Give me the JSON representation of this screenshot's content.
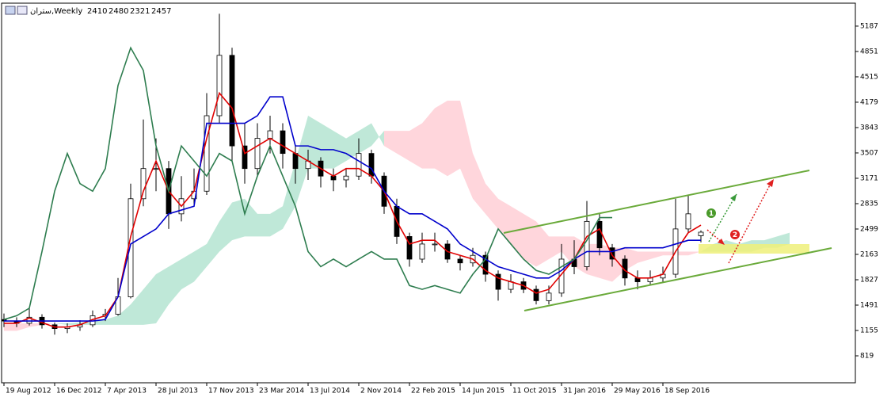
{
  "chart_data": {
    "type": "candlestick",
    "title": "ستران,Weekly",
    "x": [
      0,
      4,
      8,
      12,
      16,
      20,
      24,
      28,
      32,
      36,
      40,
      44,
      48,
      52,
      56,
      60,
      64,
      68,
      72,
      76,
      80,
      84,
      88,
      92,
      96,
      100,
      104,
      108,
      112,
      116,
      120,
      124,
      128,
      132,
      136,
      140,
      144,
      148,
      152,
      156,
      160,
      164,
      168,
      172,
      176,
      180,
      184,
      188,
      192,
      196,
      200,
      204,
      208,
      212,
      216,
      220,
      224,
      228,
      232,
      236,
      240,
      244,
      248
    ],
    "xlim": [
      -0.75,
      268.75
    ],
    "xticks": [
      {
        "value": 0,
        "label": "19 Aug 2012"
      },
      {
        "value": 16,
        "label": "16 Dec 2012"
      },
      {
        "value": 32,
        "label": "7 Apr 2013"
      },
      {
        "value": 48,
        "label": "28 Jul 2013"
      },
      {
        "value": 64,
        "label": "17 Nov 2013"
      },
      {
        "value": 80,
        "label": "23 Mar 2014"
      },
      {
        "value": 96,
        "label": "13 Jul 2014"
      },
      {
        "value": 112,
        "label": "2 Nov 2014"
      },
      {
        "value": 128,
        "label": "22 Feb 2015"
      },
      {
        "value": 144,
        "label": "14 Jun 2015"
      },
      {
        "value": 160,
        "label": "11 Oct 2015"
      },
      {
        "value": 176,
        "label": "31 Jan 2016"
      },
      {
        "value": 192,
        "label": "29 May 2016"
      },
      {
        "value": 208,
        "label": "18 Sep 2016"
      }
    ],
    "ylim": [
      462,
      5491
    ],
    "yticks": [
      5187,
      4851,
      4515,
      4179,
      3843,
      3507,
      3171,
      2835,
      2499,
      2163,
      1827,
      1491,
      1155,
      819
    ],
    "ohlc": [
      [
        1300,
        1380,
        1200,
        1280
      ],
      [
        1280,
        1330,
        1200,
        1250
      ],
      [
        1250,
        1460,
        1220,
        1330
      ],
      [
        1330,
        1370,
        1180,
        1230
      ],
      [
        1230,
        1260,
        1100,
        1180
      ],
      [
        1180,
        1250,
        1120,
        1200
      ],
      [
        1200,
        1290,
        1150,
        1230
      ],
      [
        1230,
        1420,
        1200,
        1350
      ],
      [
        1350,
        1440,
        1280,
        1370
      ],
      [
        1370,
        1850,
        1350,
        1600
      ],
      [
        1600,
        3100,
        1580,
        2900
      ],
      [
        2900,
        3950,
        2800,
        3300
      ],
      [
        3300,
        3700,
        3000,
        3300
      ],
      [
        3300,
        3400,
        2500,
        2700
      ],
      [
        2700,
        3200,
        2600,
        2900
      ],
      [
        2900,
        3300,
        2800,
        3000
      ],
      [
        3000,
        4300,
        2950,
        4000
      ],
      [
        4000,
        5350,
        3900,
        4800
      ],
      [
        4800,
        4900,
        3400,
        3600
      ],
      [
        3600,
        3900,
        3100,
        3300
      ],
      [
        3300,
        3900,
        3200,
        3700
      ],
      [
        3700,
        4000,
        3500,
        3800
      ],
      [
        3800,
        3900,
        3300,
        3500
      ],
      [
        3500,
        3600,
        3100,
        3300
      ],
      [
        3300,
        3550,
        3150,
        3400
      ],
      [
        3400,
        3450,
        3050,
        3200
      ],
      [
        3200,
        3300,
        3000,
        3150
      ],
      [
        3150,
        3300,
        3050,
        3200
      ],
      [
        3200,
        3700,
        3150,
        3500
      ],
      [
        3500,
        3550,
        3100,
        3200
      ],
      [
        3200,
        3250,
        2700,
        2800
      ],
      [
        2800,
        2900,
        2300,
        2400
      ],
      [
        2400,
        2450,
        2000,
        2100
      ],
      [
        2100,
        2450,
        2050,
        2300
      ],
      [
        2300,
        2450,
        2200,
        2300
      ],
      [
        2300,
        2350,
        2050,
        2100
      ],
      [
        2100,
        2150,
        1950,
        2050
      ],
      [
        2050,
        2250,
        2000,
        2150
      ],
      [
        2150,
        2200,
        1800,
        1900
      ],
      [
        1900,
        1950,
        1550,
        1700
      ],
      [
        1700,
        1900,
        1650,
        1800
      ],
      [
        1800,
        1850,
        1650,
        1700
      ],
      [
        1700,
        1750,
        1500,
        1550
      ],
      [
        1550,
        1750,
        1500,
        1650
      ],
      [
        1650,
        2300,
        1600,
        2100
      ],
      [
        2100,
        2350,
        1900,
        2000
      ],
      [
        2000,
        2870,
        1950,
        2600
      ],
      [
        2600,
        2700,
        2150,
        2250
      ],
      [
        2250,
        2300,
        2000,
        2100
      ],
      [
        2100,
        2150,
        1750,
        1850
      ],
      [
        1850,
        1950,
        1700,
        1800
      ],
      [
        1800,
        1950,
        1750,
        1850
      ],
      [
        1850,
        2000,
        1800,
        1900
      ],
      [
        1900,
        2900,
        1850,
        2500
      ],
      [
        2500,
        2950,
        2450,
        2700
      ],
      [
        2410,
        2480,
        2321,
        2457
      ],
      null,
      null,
      null,
      null,
      null,
      null,
      null
    ],
    "candle_colors": {
      "up": "#ffffff",
      "down": "#000000",
      "outline": "#000000"
    },
    "lines": [
      {
        "color": "#e00000",
        "values": [
          1250,
          1250,
          1320,
          1260,
          1200,
          1200,
          1230,
          1300,
          1350,
          1600,
          2400,
          3000,
          3400,
          3000,
          2800,
          3000,
          3700,
          4300,
          4100,
          3500,
          3600,
          3700,
          3600,
          3500,
          3400,
          3300,
          3200,
          3300,
          3300,
          3200,
          3000,
          2600,
          2300,
          2350,
          2350,
          2200,
          2150,
          2100,
          1950,
          1850,
          1800,
          1750,
          1650,
          1700,
          1900,
          2100,
          2400,
          2500,
          2150,
          1950,
          1850,
          1850,
          1900,
          2200,
          2450,
          2550,
          null,
          null,
          null,
          null,
          null,
          null,
          null
        ]
      },
      {
        "color": "#0000cc",
        "values": [
          1280,
          1280,
          1280,
          1280,
          1280,
          1280,
          1280,
          1280,
          1300,
          1600,
          2300,
          2400,
          2500,
          2700,
          2750,
          2800,
          3900,
          3900,
          3900,
          3900,
          4000,
          4250,
          4250,
          3600,
          3600,
          3550,
          3550,
          3500,
          3400,
          3300,
          3000,
          2800,
          2700,
          2700,
          2600,
          2500,
          2300,
          2200,
          2100,
          2000,
          1950,
          1900,
          1850,
          1850,
          1950,
          2100,
          2200,
          2200,
          2200,
          2250,
          2250,
          2250,
          2250,
          2300,
          2350,
          2350,
          null,
          null,
          null,
          null,
          null,
          null,
          null
        ]
      },
      {
        "color": "#2e7d4f",
        "values": [
          1300,
          1350,
          1450,
          2200,
          3000,
          3500,
          3100,
          3000,
          3300,
          4400,
          4900,
          4600,
          3600,
          3000,
          3600,
          3400,
          3200,
          3500,
          3400,
          2700,
          3200,
          3600,
          3200,
          2800,
          2200,
          2000,
          2100,
          2000,
          2100,
          2200,
          2100,
          2100,
          1750,
          1700,
          1750,
          1700,
          1650,
          1900,
          2100,
          2500,
          2300,
          2100,
          1950,
          1900,
          2000,
          2100,
          2350,
          2650,
          2650,
          null,
          null,
          null,
          null,
          null,
          null,
          null,
          null,
          null,
          null,
          null,
          null,
          null,
          null
        ]
      }
    ],
    "cloud": {
      "up_color": "#bfe8d8",
      "down_color": "#ffd6dc",
      "span_a": [
        1150,
        1150,
        1200,
        1230,
        1250,
        1250,
        1260,
        1270,
        1300,
        1350,
        1500,
        1700,
        1900,
        2000,
        2100,
        2200,
        2300,
        2600,
        2850,
        2900,
        2700,
        2700,
        2800,
        3400,
        4000,
        3900,
        3800,
        3700,
        3800,
        3900,
        3600,
        3500,
        3400,
        3300,
        3300,
        3200,
        3300,
        2900,
        2700,
        2500,
        2300,
        2100,
        2000,
        2100,
        2200,
        2000,
        1900,
        1850,
        1800,
        1950,
        2050,
        2100,
        2150,
        2150,
        2150,
        2200,
        2300,
        2350,
        2300,
        2350,
        2350,
        2400,
        2450
      ],
      "span_b": [
        1250,
        1250,
        1250,
        1250,
        1250,
        1230,
        1230,
        1230,
        1230,
        1230,
        1230,
        1230,
        1250,
        1500,
        1700,
        1800,
        2000,
        2200,
        2350,
        2400,
        2400,
        2400,
        2500,
        2800,
        3300,
        3300,
        3300,
        3400,
        3500,
        3600,
        3800,
        3800,
        3800,
        3900,
        4100,
        4200,
        4200,
        3500,
        3100,
        2900,
        2800,
        2700,
        2600,
        2400,
        2400,
        2400,
        2300,
        2300,
        2250,
        2250,
        2200,
        2200,
        2200,
        2200,
        2200,
        2200,
        2200,
        2200,
        2200,
        2200,
        2250,
        2250,
        2300
      ]
    },
    "annotations": [
      "1",
      "2"
    ]
  }
}
